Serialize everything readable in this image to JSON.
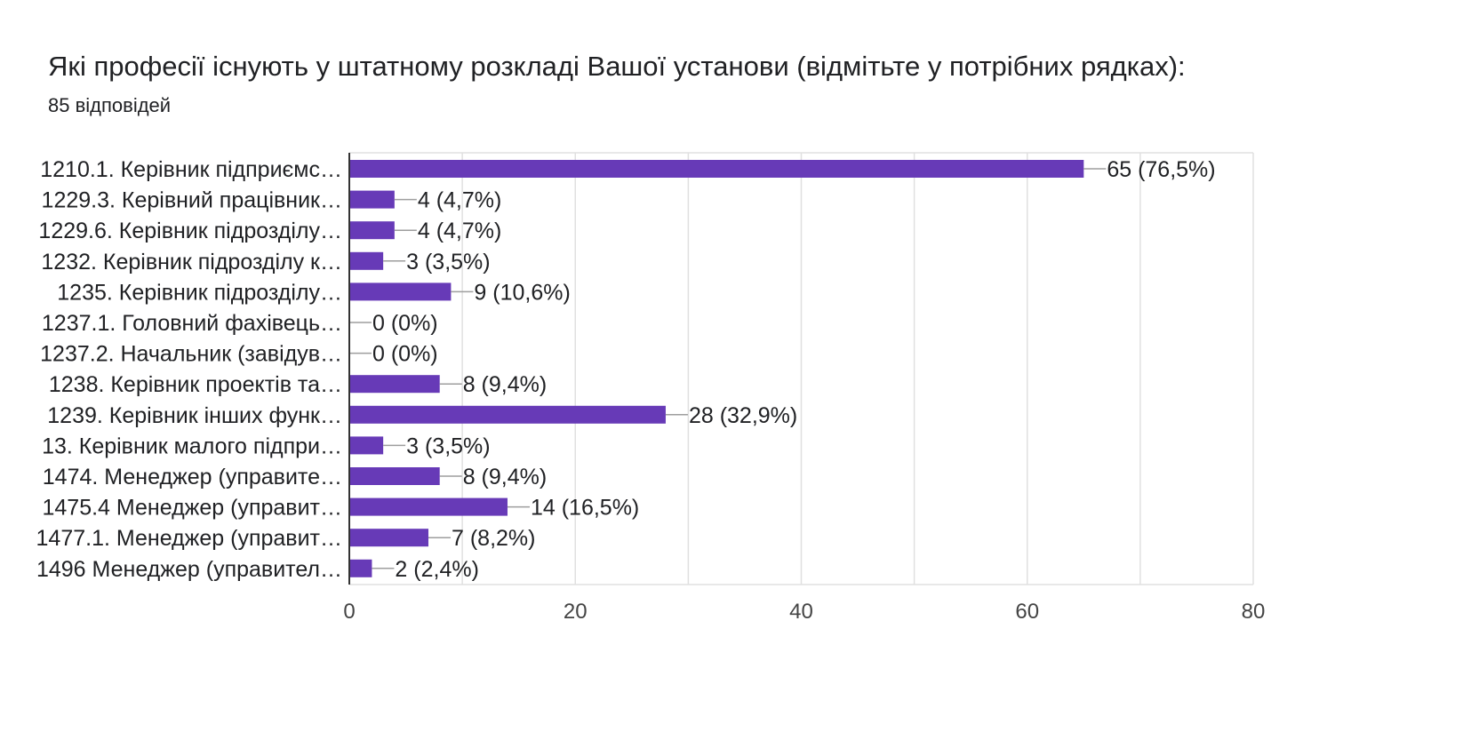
{
  "chart_data": {
    "type": "bar",
    "orientation": "horizontal",
    "title": "Які професії існують у штатному розкладі Вашої установи (відмітьте у потрібних рядках):",
    "subtitle": "85 відповідей",
    "categories": [
      "1210.1. Керівник підприємс…",
      "1229.3. Керівний працівник…",
      "1229.6. Керівник підрозділу…",
      "1232. Керівник підрозділу к…",
      "1235. Керівник підрозділу…",
      "1237.1. Головний фахівець…",
      "1237.2. Начальник (завідув…",
      "1238. Керівник проектів та…",
      "1239. Керівник інших функ…",
      "13. Керівник малого підпри…",
      "1474. Менеджер (управите…",
      "1475.4 Менеджер (управит…",
      "1477.1. Менеджер (управит…",
      "1496 Менеджер (управител…"
    ],
    "values": [
      65,
      4,
      4,
      3,
      9,
      0,
      0,
      8,
      28,
      3,
      8,
      14,
      7,
      2
    ],
    "data_labels": [
      "65 (76,5%)",
      "4 (4,7%)",
      "4 (4,7%)",
      "3 (3,5%)",
      "9 (10,6%)",
      "0 (0%)",
      "0 (0%)",
      "8 (9,4%)",
      "28 (32,9%)",
      "3 (3,5%)",
      "8 (9,4%)",
      "14 (16,5%)",
      "7 (8,2%)",
      "2 (2,4%)"
    ],
    "xlim": [
      0,
      80
    ],
    "x_ticks": [
      0,
      20,
      40,
      60,
      80
    ],
    "grid": true,
    "bar_color": "#673ab7",
    "grid_color": "#e0e0e0",
    "axis_color": "#333333",
    "leader_color": "#9e9e9e"
  }
}
